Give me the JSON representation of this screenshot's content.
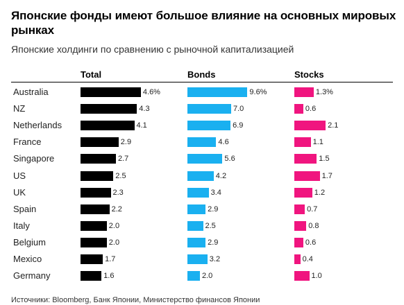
{
  "title": "Японские фонды имеют большое влияние на основных мировых рынках",
  "subtitle": "Японские холдинги по сравнению с рыночной капитализацией",
  "source": "Источники: Bloomberg, Банк Японии, Министерство финансов Японии",
  "colors": {
    "total": "#000000",
    "bonds": "#1ab0f0",
    "stocks": "#f0157f"
  },
  "chart_data": {
    "type": "bar",
    "title": "Японские фонды имеют большое влияние на основных мировых рынках",
    "subtitle": "Японские холдинги по сравнению с рыночной капитализацией",
    "categories": [
      "Australia",
      "NZ",
      "Netherlands",
      "France",
      "Singapore",
      "US",
      "UK",
      "Spain",
      "Italy",
      "Belgium",
      "Mexico",
      "Germany"
    ],
    "series": [
      {
        "name": "Total",
        "values": [
          4.6,
          4.3,
          4.1,
          2.9,
          2.7,
          2.5,
          2.3,
          2.2,
          2.0,
          2.0,
          1.7,
          1.6
        ],
        "labels": [
          "4.6%",
          "4.3",
          "4.1",
          "2.9",
          "2.7",
          "2.5",
          "2.3",
          "2.2",
          "2.0",
          "2.0",
          "1.7",
          "1.6"
        ]
      },
      {
        "name": "Bonds",
        "values": [
          9.6,
          7.0,
          6.9,
          4.6,
          5.6,
          4.2,
          3.4,
          2.9,
          2.5,
          2.9,
          3.2,
          2.0
        ],
        "labels": [
          "9.6%",
          "7.0",
          "6.9",
          "4.6",
          "5.6",
          "4.2",
          "3.4",
          "2.9",
          "2.5",
          "2.9",
          "3.2",
          "2.0"
        ]
      },
      {
        "name": "Stocks",
        "values": [
          1.3,
          0.6,
          2.1,
          1.1,
          1.5,
          1.7,
          1.2,
          0.7,
          0.8,
          0.6,
          0.4,
          1.0
        ],
        "labels": [
          "1.3%",
          "0.6",
          "2.1",
          "1.1",
          "1.5",
          "1.7",
          "1.2",
          "0.7",
          "0.8",
          "0.6",
          "0.4",
          "1.0"
        ]
      }
    ],
    "xlabel": "",
    "ylabel": "",
    "grid": false,
    "legend": "none"
  }
}
